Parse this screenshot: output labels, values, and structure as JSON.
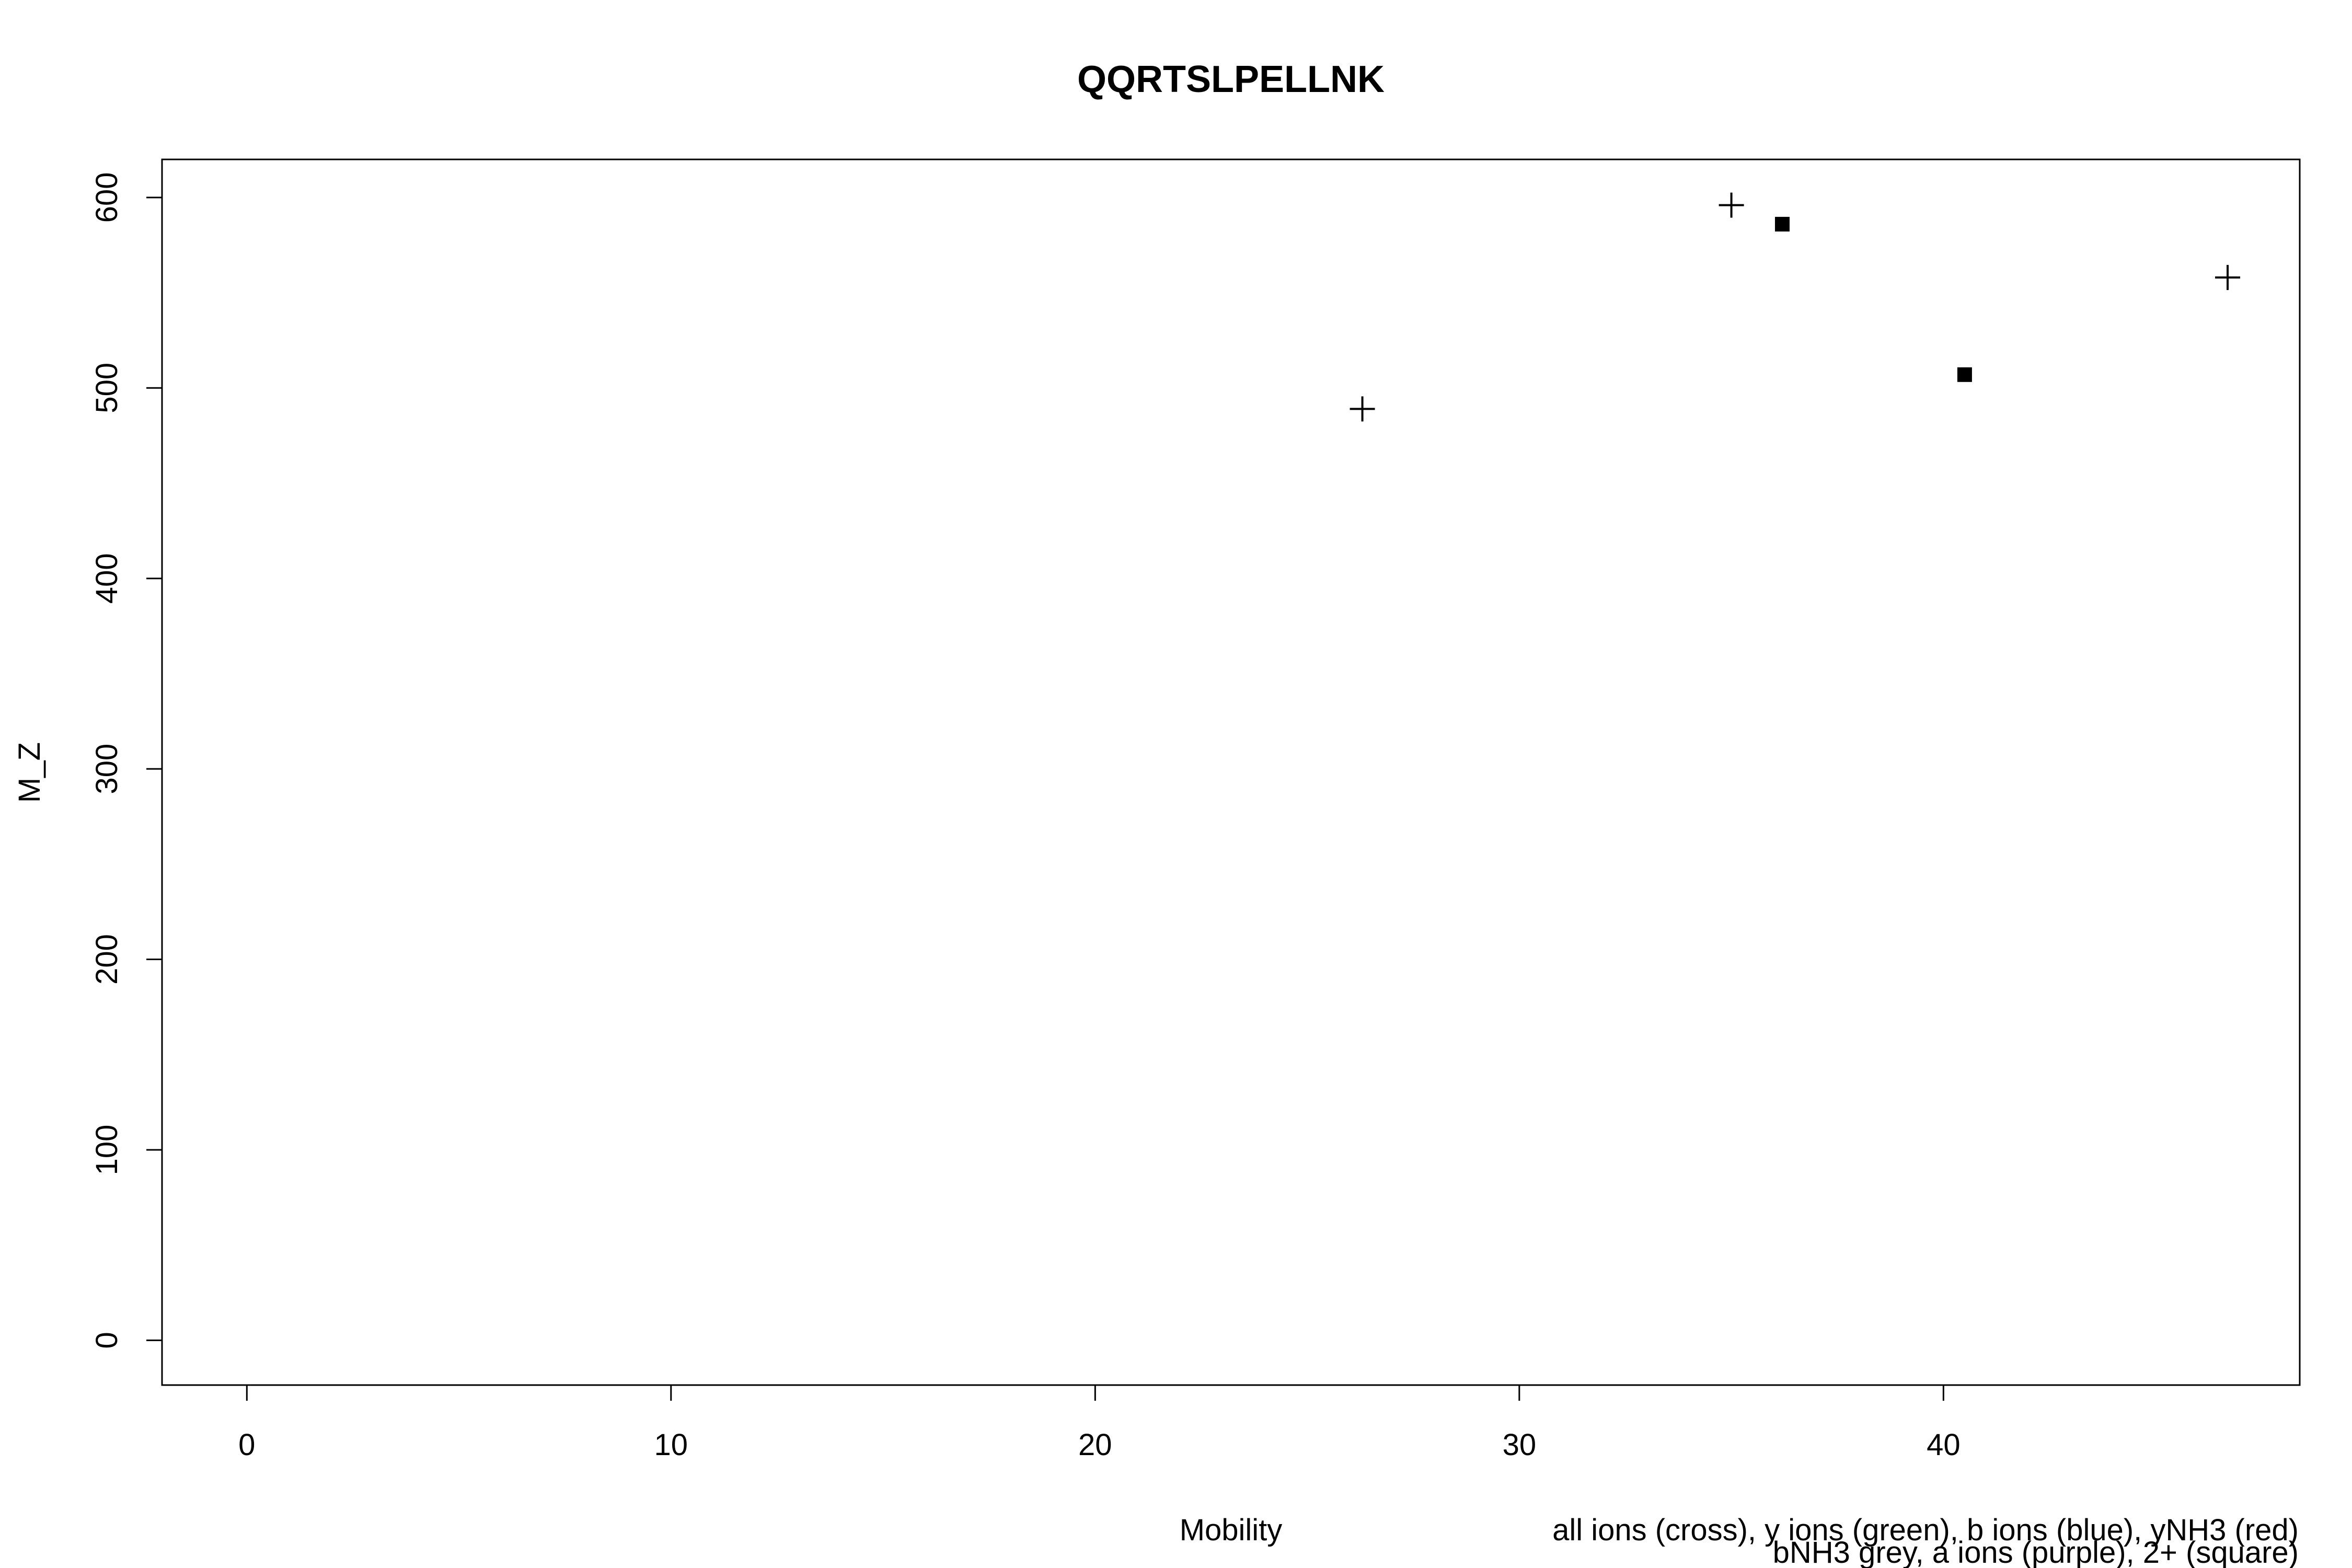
{
  "chart_data": {
    "type": "scatter",
    "title": "QQRTSLPELLNK",
    "xlabel": "Mobility",
    "ylabel": "M_Z",
    "xlim": [
      -2,
      48.4
    ],
    "ylim": [
      -23.5,
      620
    ],
    "x_ticks": [
      0,
      10,
      20,
      30,
      40
    ],
    "y_ticks": [
      0,
      100,
      200,
      300,
      400,
      500,
      600
    ],
    "grid": false,
    "notes": [
      "all ions (cross), y ions (green), b ions (blue), yNH3 (red)",
      "bNH3 grey, a ions (purple), 2+ (square)"
    ],
    "series": [
      {
        "marker": "cross",
        "color": "#000000",
        "points": [
          {
            "x": 26.3,
            "y": 489
          },
          {
            "x": 35.0,
            "y": 596
          },
          {
            "x": 46.7,
            "y": 558
          }
        ]
      },
      {
        "marker": "square",
        "color": "#000000",
        "points": [
          {
            "x": 36.2,
            "y": 586
          },
          {
            "x": 40.5,
            "y": 507
          }
        ]
      }
    ]
  }
}
